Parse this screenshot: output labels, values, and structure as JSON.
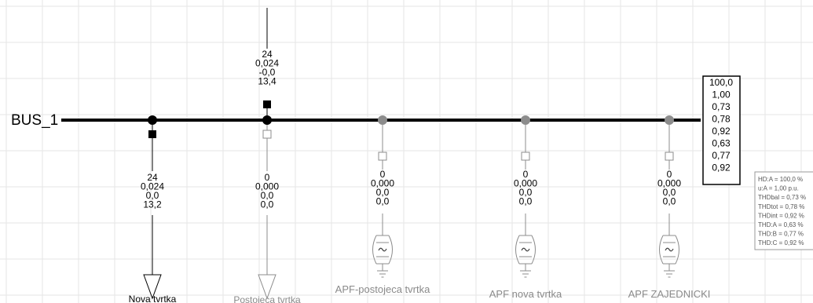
{
  "bus": {
    "name": "BUS_1"
  },
  "bus_values": [
    "100,0",
    "1,00",
    "0,73",
    "0,78",
    "0,92",
    "0,63",
    "0,77",
    "0,92"
  ],
  "harmonics_box": [
    "HD:A = 100,0 %",
    "u:A = 1,00 p.u.",
    "THDbal = 0,73 %",
    "THDtot = 0,78 %",
    "THDint = 0,92 %",
    "THD:A = 0,63 %",
    "THD:B = 0,77 %",
    "THD:C = 0,92 %"
  ],
  "incoming_feeder": {
    "values": [
      "24",
      "0,024",
      "-0,0",
      "13,4"
    ]
  },
  "loads": [
    {
      "name": "Nova tvrtka",
      "values": [
        "24",
        "0,024",
        "0,0",
        "13,2"
      ],
      "active": true
    },
    {
      "name": "Postojeca tvrtka",
      "values": [
        "0",
        "0,000",
        "0,0",
        "0,0"
      ],
      "active": false
    }
  ],
  "filters": [
    {
      "name": "APF-postojeca tvrtka",
      "values": [
        "0",
        "0,000",
        "0,0",
        "0,0"
      ]
    },
    {
      "name": "APF nova tvrtka",
      "values": [
        "0",
        "0,000",
        "0,0",
        "0,0"
      ]
    },
    {
      "name": "APF ZAJEDNICKI",
      "values": [
        "0",
        "0,000",
        "0,0",
        "0,0"
      ]
    }
  ],
  "colors": {
    "grid": "#e6e6e6",
    "line": "#000000",
    "inactive": "#8c8c8c",
    "inactive_label": "#8a8a8a",
    "box_border": "#999999",
    "box_text": "#555555"
  }
}
